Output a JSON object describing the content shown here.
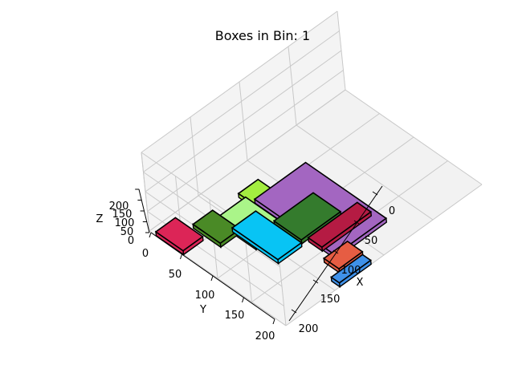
{
  "chart_data": {
    "type": "3d-bar",
    "title": "Boxes in Bin: 1",
    "xlabel": "X",
    "ylabel": "Y",
    "zlabel": "Z",
    "xlim": [
      0,
      200
    ],
    "ylim": [
      0,
      200
    ],
    "zlim": [
      0,
      200
    ],
    "x_ticks": [
      "0",
      "50",
      "100",
      "150",
      "200"
    ],
    "y_ticks": [
      "0",
      "50",
      "100",
      "150",
      "200"
    ],
    "z_ticks": [
      "0",
      "50",
      "100",
      "150",
      "200"
    ],
    "boxes": [
      {
        "x": 0,
        "y": 10,
        "dx": 20,
        "dy": 40,
        "dz": 10,
        "color": "#dc2557"
      },
      {
        "x": 24,
        "y": 30,
        "dx": 20,
        "dy": 40,
        "dz": 10,
        "color": "#4a8a26"
      },
      {
        "x": 41,
        "y": 63,
        "dx": 24,
        "dy": 67,
        "dz": 10,
        "color": "#08c4f4"
      },
      {
        "x": 40,
        "y": 41,
        "dx": 30,
        "dy": 58,
        "dz": 10,
        "color": "#aaf589"
      },
      {
        "x": 69,
        "y": 32,
        "dx": 20,
        "dy": 44,
        "dz": 10,
        "color": "#a3ed40"
      },
      {
        "x": 73,
        "y": 79,
        "dx": 38,
        "dy": 25,
        "dz": 10,
        "color": "#0005e0"
      },
      {
        "x": 67,
        "y": 87,
        "dx": 40,
        "dy": 40,
        "dz": 10,
        "color": "#347b2d"
      },
      {
        "x": 73,
        "y": 50,
        "dx": 52,
        "dy": 118,
        "dz": 10,
        "color": "#a366c1"
      },
      {
        "x": 72,
        "y": 130,
        "dx": 50,
        "dy": 20,
        "dz": 10,
        "color": "#b51b43"
      },
      {
        "x": 65,
        "y": 163,
        "dx": 24,
        "dy": 22,
        "dz": 10,
        "color": "#e65d43"
      },
      {
        "x": 55,
        "y": 188,
        "dx": 32,
        "dy": 12,
        "dz": 10,
        "color": "#3f91e9"
      }
    ]
  }
}
